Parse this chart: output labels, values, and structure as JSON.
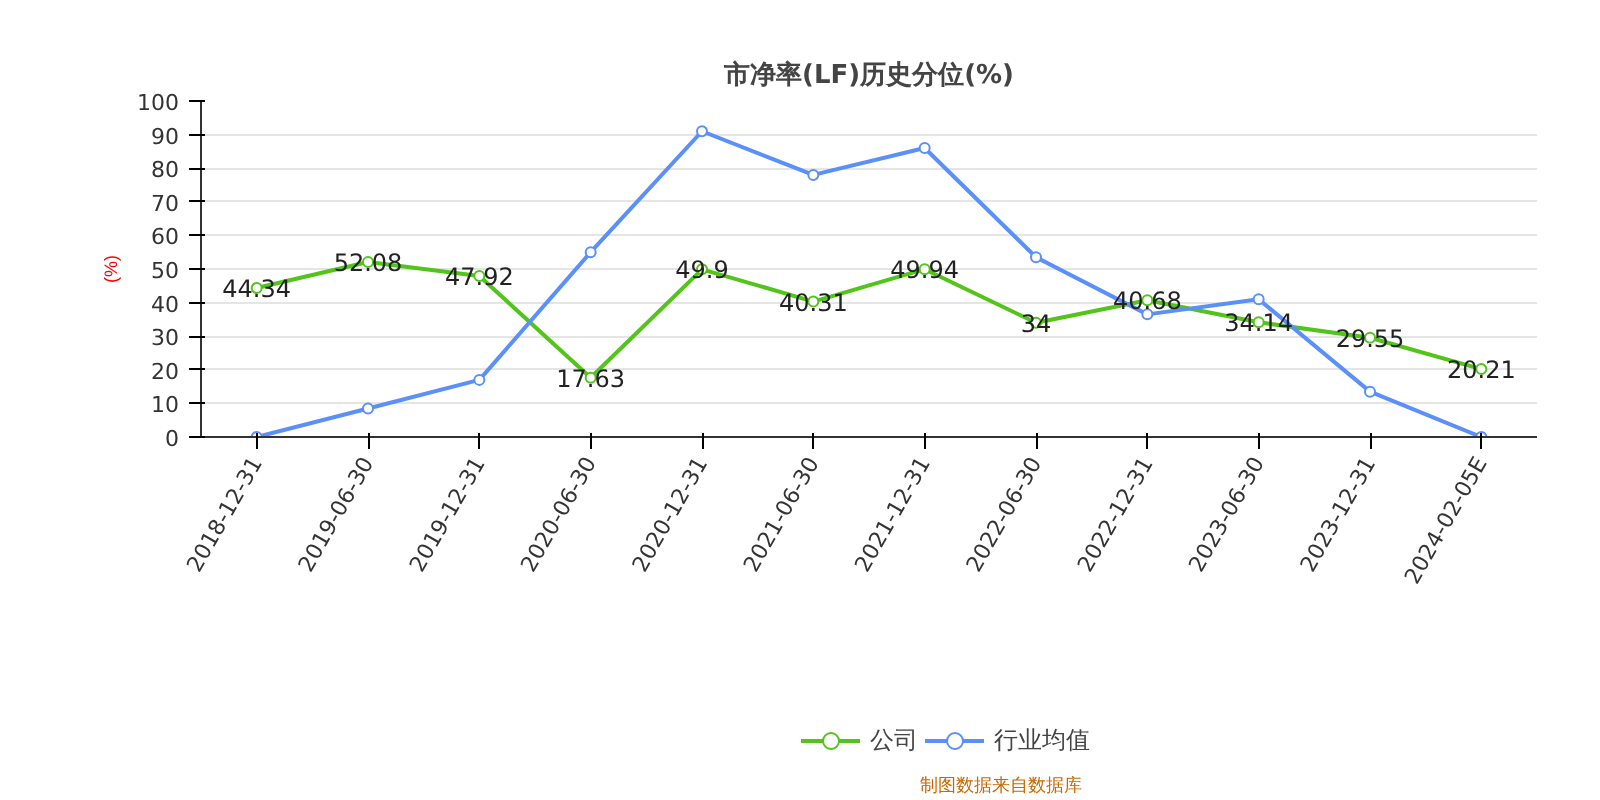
{
  "chart_data": {
    "type": "line",
    "title": "市净率(LF)历史分位(%)",
    "ylabel": "(%)",
    "categories": [
      "2018-12-31",
      "2019-06-30",
      "2019-12-31",
      "2020-06-30",
      "2020-12-31",
      "2021-06-30",
      "2021-12-31",
      "2022-06-30",
      "2022-12-31",
      "2023-06-30",
      "2023-12-31",
      "2024-02-05E"
    ],
    "series": [
      {
        "name": "公司",
        "color": "#52c41a",
        "values": [
          44.34,
          52.08,
          47.92,
          17.63,
          49.9,
          40.31,
          49.94,
          34,
          40.68,
          34.14,
          29.55,
          20.21
        ],
        "value_labels": [
          "44.34",
          "52.08",
          "47.92",
          "17.63",
          "49.9",
          "40.31",
          "49.94",
          "34",
          "40.68",
          "34.14",
          "29.55",
          "20.21"
        ]
      },
      {
        "name": "行业均值",
        "color": "#5b8ff9",
        "values": [
          0,
          8.5,
          17,
          55,
          91,
          78,
          86,
          53.5,
          36.5,
          41,
          13.5,
          0
        ]
      }
    ],
    "ylim": [
      0,
      100
    ],
    "yticks": [
      0,
      10,
      20,
      30,
      40,
      50,
      60,
      70,
      80,
      90,
      100
    ],
    "grid": "y",
    "legend": "bottom",
    "marker": "circle",
    "line_style": "solid",
    "annotations": [
      "制图数据来自数据库"
    ]
  }
}
